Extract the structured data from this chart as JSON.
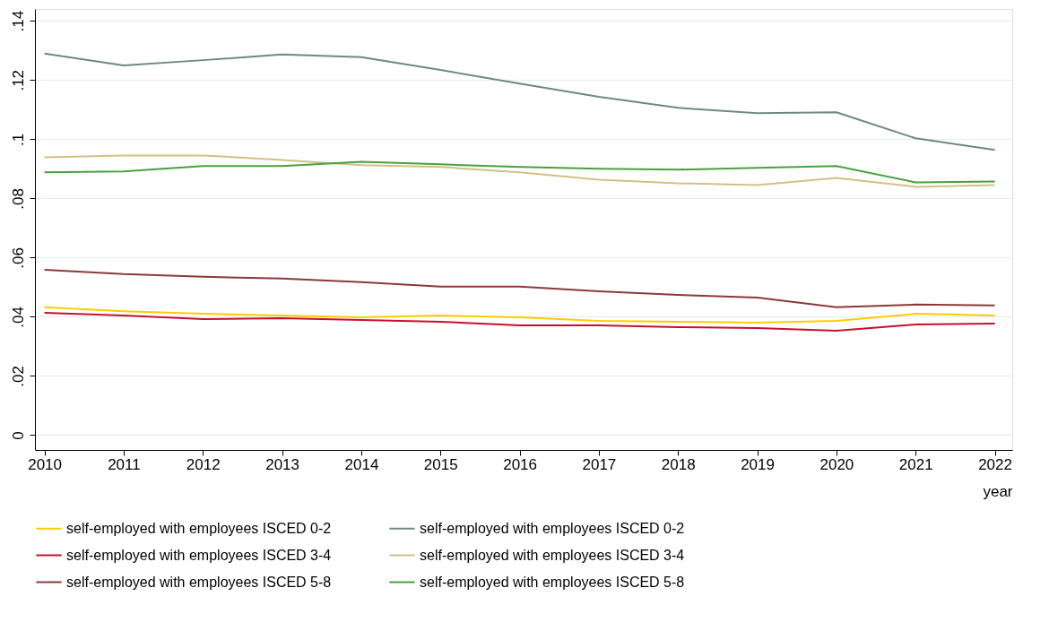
{
  "chart_data": {
    "type": "line",
    "xlabel": "year",
    "x": [
      2010,
      2011,
      2012,
      2013,
      2014,
      2015,
      2016,
      2017,
      2018,
      2019,
      2020,
      2021,
      2022
    ],
    "xlim": [
      2009.88,
      2022.22
    ],
    "xticks": [
      2010,
      2011,
      2012,
      2013,
      2014,
      2015,
      2016,
      2017,
      2018,
      2019,
      2020,
      2021,
      2022
    ],
    "ylim": [
      -0.005,
      0.144
    ],
    "yticks": [
      0,
      {
        "value": 0.02,
        "label": ".02"
      },
      {
        "value": 0.04,
        "label": ".04"
      },
      {
        "value": 0.06,
        "label": ".06"
      },
      {
        "value": 0.08,
        "label": ".08"
      },
      {
        "value": 0.1,
        "label": ".1"
      },
      {
        "value": 0.12,
        "label": ".12"
      },
      {
        "value": 0.14,
        "label": ".14"
      }
    ],
    "grid": "y",
    "legend": "bottom",
    "line_style": "solid",
    "series": [
      {
        "name": "self-employed with employees ISCED 0-2",
        "color": "#ffcc00",
        "values": [
          0.0432,
          0.0419,
          0.041,
          0.0404,
          0.0398,
          0.0404,
          0.0398,
          0.0386,
          0.0383,
          0.038,
          0.0386,
          0.041,
          0.0404
        ]
      },
      {
        "name": "self-employed with employees ISCED 3-4",
        "color": "#c8102e",
        "values": [
          0.0413,
          0.0404,
          0.0392,
          0.0395,
          0.0389,
          0.0383,
          0.0371,
          0.0371,
          0.0365,
          0.0362,
          0.0353,
          0.0374,
          0.0377
        ]
      },
      {
        "name": "self-employed with employees ISCED 5-8",
        "color": "#8b3a3a",
        "values": [
          0.0559,
          0.0544,
          0.0535,
          0.0529,
          0.0517,
          0.0502,
          0.0502,
          0.0486,
          0.0474,
          0.0465,
          0.0432,
          0.0441,
          0.0438
        ]
      },
      {
        "name": "self-employed with employees ISCED 0-2",
        "color": "#6e8b7d",
        "values": [
          0.1289,
          0.1249,
          0.1267,
          0.1286,
          0.1277,
          0.1234,
          0.1188,
          0.1143,
          0.1106,
          0.1088,
          0.1091,
          0.1003,
          0.0964
        ]
      },
      {
        "name": "self-employed with employees ISCED 3-4",
        "color": "#d2c184",
        "values": [
          0.0939,
          0.0945,
          0.0945,
          0.093,
          0.0912,
          0.0906,
          0.0888,
          0.0863,
          0.0851,
          0.0845,
          0.0869,
          0.0839,
          0.0845
        ]
      },
      {
        "name": "self-employed with employees ISCED 5-8",
        "color": "#4aa03f",
        "values": [
          0.0888,
          0.0891,
          0.0909,
          0.0909,
          0.0924,
          0.0915,
          0.0906,
          0.09,
          0.0897,
          0.0903,
          0.0909,
          0.0854,
          0.0857
        ]
      }
    ]
  }
}
